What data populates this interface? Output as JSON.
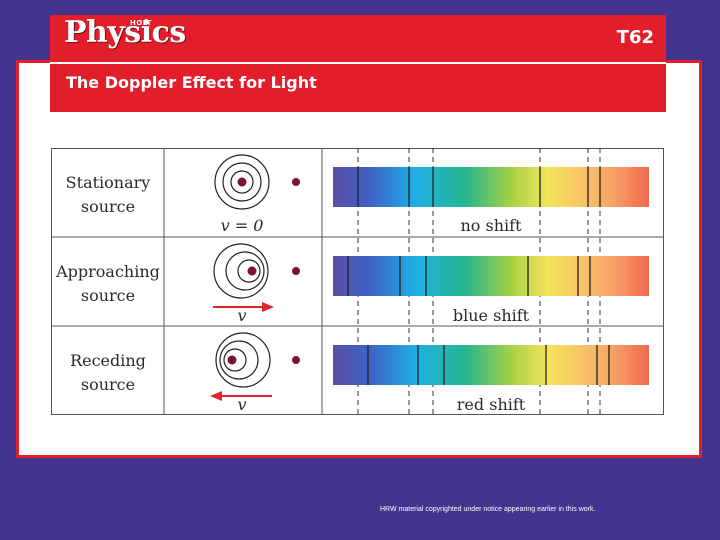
{
  "header": {
    "logo_small": "HOLT",
    "logo_main": "Physics",
    "transparency_number": "T62",
    "title": "The Doppler Effect for Light"
  },
  "diagram": {
    "rows": [
      {
        "label_line1": "Stationary",
        "label_line2": "source",
        "velocity_label": "v = 0",
        "arrow": "none",
        "shift_label": "no shift"
      },
      {
        "label_line1": "Approaching",
        "label_line2": "source",
        "velocity_label": "v",
        "arrow": "right",
        "shift_label": "blue shift"
      },
      {
        "label_line1": "Receding",
        "label_line2": "source",
        "velocity_label": "v",
        "arrow": "left",
        "shift_label": "red shift"
      }
    ]
  },
  "colors": {
    "background": "#43348f",
    "header_red": "#e31e2b",
    "arrow_red": "#e0232d",
    "dot": "#7d1238"
  },
  "footer": {
    "copyright": "HRW material copyrighted under notice appearing earlier in this work."
  }
}
